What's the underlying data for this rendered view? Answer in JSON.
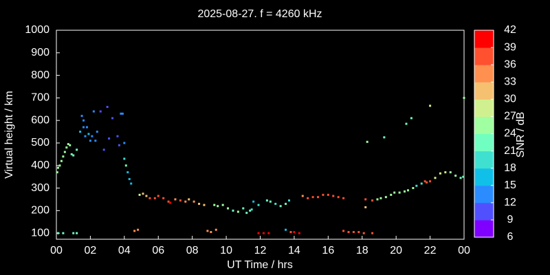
{
  "chart_data": {
    "type": "scatter",
    "title": "2025-08-27. f = 4260 kHz",
    "xlabel": "UT Time / hrs",
    "ylabel": "Virtual height / km",
    "xlim": [
      0,
      24
    ],
    "xticks": [
      {
        "value": 0,
        "label": "00"
      },
      {
        "value": 2,
        "label": "02"
      },
      {
        "value": 4,
        "label": "04"
      },
      {
        "value": 6,
        "label": "06"
      },
      {
        "value": 8,
        "label": "08"
      },
      10,
      12,
      14,
      16,
      18,
      20,
      22,
      {
        "value": 24,
        "label": "00"
      }
    ],
    "ylim": [
      73,
      1000
    ],
    "yticks": [
      100,
      200,
      300,
      400,
      500,
      600,
      700,
      800,
      900,
      1000
    ],
    "colorbar": {
      "label": "SNR / dB",
      "zlim": [
        6,
        42
      ],
      "zticks": [
        6,
        9,
        12,
        15,
        18,
        21,
        24,
        27,
        30,
        33,
        36,
        39,
        42
      ],
      "colors": [
        "#8000ff",
        "#5050ff",
        "#2a8cff",
        "#10c0e8",
        "#40e0d0",
        "#70ffc0",
        "#a0ffa0",
        "#d0f090",
        "#f5c070",
        "#ff9050",
        "#ff5030",
        "#ff0000"
      ]
    },
    "series": [
      {
        "x": [
          0.05,
          0.1,
          0.2,
          0.3,
          0.4,
          0.5,
          0.6,
          0.7,
          0.8,
          0.9,
          1.0,
          1.2,
          1.4,
          1.5,
          1.6,
          1.6,
          1.7,
          1.8,
          1.9,
          2.0,
          2.1,
          2.2,
          2.3,
          2.4,
          2.6,
          2.8,
          3.0,
          3.1,
          3.3,
          3.6,
          3.7,
          3.8,
          3.9,
          4.0,
          4.0,
          4.1,
          4.2,
          4.3,
          4.4,
          0.1,
          0.4,
          1.0,
          1.2,
          4.6,
          4.8,
          4.9,
          5.1,
          5.3,
          5.5,
          5.8,
          6.0,
          6.3,
          6.6,
          6.7,
          7.0,
          7.3,
          7.6,
          7.8,
          8.1,
          8.4,
          8.7,
          9.3,
          9.5,
          9.8,
          10.1,
          10.4,
          10.7,
          11.0,
          11.2,
          11.4,
          11.5,
          11.6,
          11.9,
          8.9,
          9.1,
          9.4,
          12.4,
          12.6,
          12.9,
          13.2,
          13.5,
          13.7,
          11.9,
          12.2,
          12.5,
          13.5,
          13.8,
          14.0,
          14.3,
          14.5,
          14.8,
          15.1,
          15.4,
          15.7,
          16.0,
          16.3,
          16.6,
          16.9,
          16.9,
          17.2,
          17.5,
          17.8,
          18.1,
          18.6,
          18.2,
          18.2,
          18.6,
          18.9,
          19.1,
          19.4,
          19.7,
          19.9,
          20.2,
          20.5,
          20.7,
          21.0,
          21.2,
          21.5,
          21.7,
          21.8,
          22.0,
          22.3,
          22.6,
          22.9,
          23.2,
          23.5,
          23.8,
          23.95,
          18.3,
          19.3,
          20.6,
          20.9,
          22.0,
          24.0
        ],
        "values": [
          370,
          390,
          400,
          420,
          440,
          460,
          480,
          495,
          490,
          450,
          445,
          470,
          550,
          620,
          570,
          600,
          530,
          570,
          540,
          510,
          530,
          640,
          510,
          550,
          640,
          470,
          660,
          520,
          610,
          530,
          490,
          630,
          630,
          500,
          430,
          400,
          370,
          340,
          320,
          100,
          100,
          100,
          100,
          110,
          115,
          270,
          275,
          265,
          255,
          255,
          265,
          255,
          240,
          235,
          250,
          245,
          240,
          250,
          240,
          230,
          225,
          225,
          220,
          225,
          210,
          200,
          195,
          210,
          190,
          200,
          205,
          240,
          225,
          110,
          105,
          115,
          245,
          240,
          230,
          220,
          230,
          245,
          100,
          100,
          100,
          115,
          105,
          105,
          100,
          265,
          255,
          260,
          260,
          270,
          270,
          265,
          260,
          255,
          110,
          105,
          105,
          105,
          100,
          100,
          250,
          215,
          245,
          250,
          255,
          260,
          270,
          280,
          280,
          285,
          290,
          300,
          310,
          320,
          330,
          325,
          330,
          345,
          365,
          370,
          370,
          355,
          345,
          350,
          505,
          525,
          585,
          610,
          665,
          700
        ],
        "snr": [
          24,
          25,
          25,
          25,
          25,
          24,
          25,
          25,
          25,
          22,
          22,
          21,
          15,
          12,
          14,
          12,
          13,
          14,
          15,
          14,
          13,
          12,
          14,
          13,
          11,
          11,
          11,
          11,
          11,
          11,
          11,
          12,
          12,
          12,
          18,
          21,
          17,
          17,
          16,
          22,
          22,
          22,
          22,
          33,
          34,
          28,
          30,
          32,
          36,
          37,
          36,
          36,
          38,
          39,
          35,
          36,
          34,
          32,
          33,
          30,
          31,
          25,
          24,
          25,
          24,
          22,
          24,
          21,
          21,
          21,
          18,
          16,
          18,
          35,
          33,
          33,
          22,
          23,
          20,
          21,
          21,
          20,
          39,
          39,
          39,
          17,
          38,
          39,
          39,
          35,
          38,
          36,
          37,
          37,
          36,
          37,
          38,
          38,
          38,
          38,
          38,
          36,
          37,
          37,
          37,
          32,
          37,
          25,
          25,
          26,
          26,
          26,
          25,
          26,
          26,
          26,
          20,
          19,
          36,
          36,
          36,
          28,
          27,
          27,
          26,
          26,
          22,
          22,
          26,
          22,
          22,
          22,
          27,
          24
        ]
      }
    ]
  }
}
